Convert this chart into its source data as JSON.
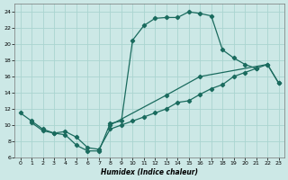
{
  "xlabel": "Humidex (Indice chaleur)",
  "bg_color": "#cce8e6",
  "grid_color": "#aad4d0",
  "line_color": "#1a6b5e",
  "xlim": [
    -0.5,
    23.5
  ],
  "ylim": [
    6,
    25
  ],
  "xticks": [
    0,
    1,
    2,
    3,
    4,
    5,
    6,
    7,
    8,
    9,
    10,
    11,
    12,
    13,
    14,
    15,
    16,
    17,
    18,
    19,
    20,
    21,
    22,
    23
  ],
  "yticks": [
    6,
    8,
    10,
    12,
    14,
    16,
    18,
    20,
    22,
    24
  ],
  "line1_x": [
    0,
    1,
    2,
    3,
    4,
    5,
    6,
    7,
    8,
    9,
    10,
    11,
    12,
    13,
    14,
    15,
    16,
    17,
    18,
    19,
    20,
    21
  ],
  "line1_y": [
    11.5,
    10.5,
    9.5,
    9.0,
    8.8,
    7.5,
    6.8,
    6.8,
    10.2,
    10.5,
    20.5,
    22.3,
    23.2,
    23.3,
    23.3,
    24.0,
    23.8,
    23.5,
    19.3,
    18.3,
    17.5,
    17.0
  ],
  "line2_x": [
    1,
    2,
    3,
    4,
    5,
    6,
    7,
    8,
    9,
    10,
    11,
    12,
    13,
    14,
    15,
    16,
    17,
    18,
    19,
    20,
    21,
    22,
    23
  ],
  "line2_y": [
    10.3,
    9.3,
    9.0,
    9.2,
    8.5,
    7.2,
    7.0,
    9.5,
    10.0,
    10.5,
    11.0,
    11.5,
    12.0,
    12.8,
    13.0,
    13.8,
    14.5,
    15.0,
    16.0,
    16.5,
    17.0,
    17.5,
    15.2
  ],
  "line3_x": [
    8,
    13,
    16,
    22,
    23
  ],
  "line3_y": [
    10.0,
    13.7,
    16.0,
    17.5,
    15.2
  ]
}
